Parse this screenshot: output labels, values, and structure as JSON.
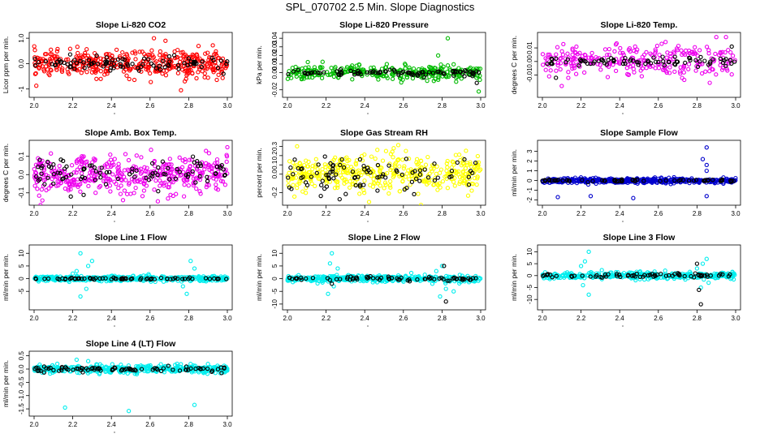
{
  "figure": {
    "title": "SPL_070702  2.5 Min. Slope Diagnostics"
  },
  "chart_data": [
    {
      "type": "scatter",
      "title": "Slope Li-820 CO2",
      "ylabel": "Licor ppm per min.",
      "xlim": [
        2.0,
        3.0
      ],
      "ylim": [
        -1.2,
        1.1
      ],
      "x_ticks": [
        "2.0",
        "2.2",
        "2.4",
        "2.6",
        "2.8",
        "3.0"
      ],
      "y_ticks": [
        "-1",
        "0.0",
        "1.0"
      ],
      "y_tick_values": [
        -1,
        0,
        1
      ],
      "series": [
        {
          "color": "#ff0000",
          "spread": 0.25,
          "count": 420,
          "outliers": [
            [
              2.76,
              -1.05
            ],
            [
              2.62,
              1.0
            ],
            [
              2.68,
              0.9
            ],
            [
              2.78,
              -0.7
            ]
          ]
        },
        {
          "color": "#000000",
          "spread": 0.15,
          "count": 90,
          "outliers": [
            [
              2.98,
              -0.4
            ]
          ]
        }
      ]
    },
    {
      "type": "scatter",
      "title": "Slope Li-820 Pressure",
      "ylabel": "kPa per min.",
      "xlim": [
        2.0,
        3.0
      ],
      "ylim": [
        -0.025,
        0.043
      ],
      "x_ticks": [
        "2.0",
        "2.2",
        "2.4",
        "2.6",
        "2.8",
        "3.0"
      ],
      "y_ticks": [
        "-0.02",
        "0.00",
        "0.01",
        "0.02",
        "0.03",
        "0.04"
      ],
      "y_tick_values": [
        -0.02,
        0.0,
        0.01,
        0.02,
        0.03,
        0.04
      ],
      "series": [
        {
          "color": "#00bb00",
          "spread": 0.004,
          "count": 320,
          "outliers": [
            [
              2.83,
              0.04
            ],
            [
              2.78,
              0.02
            ],
            [
              2.99,
              -0.022
            ]
          ]
        },
        {
          "color": "#000000",
          "spread": 0.002,
          "count": 90,
          "outliers": [
            [
              2.98,
              -0.012
            ]
          ]
        }
      ]
    },
    {
      "type": "scatter",
      "title": "Slope Li-820 Temp.",
      "ylabel": "degrees C per min.",
      "xlim": [
        2.0,
        3.0
      ],
      "ylim": [
        -0.024,
        0.019
      ],
      "x_ticks": [
        "2.0",
        "2.2",
        "2.4",
        "2.6",
        "2.8",
        "3.0"
      ],
      "y_ticks": [
        "-0.01",
        "0.00",
        "0.01"
      ],
      "y_tick_values": [
        -0.01,
        0.0,
        0.01
      ],
      "series": [
        {
          "color": "#ee00ee",
          "spread": 0.006,
          "count": 260,
          "outliers": [
            [
              2.9,
              0.018
            ],
            [
              2.95,
              0.018
            ],
            [
              2.1,
              -0.018
            ]
          ]
        },
        {
          "color": "#000000",
          "spread": 0.0015,
          "count": 80,
          "outliers": [
            [
              2.07,
              -0.012
            ],
            [
              2.98,
              0.011
            ]
          ]
        }
      ]
    },
    {
      "type": "scatter",
      "title": "Slope Amb. Box Temp.",
      "ylabel": "degrees C per min.",
      "xlim": [
        2.0,
        3.0
      ],
      "ylim": [
        -0.15,
        0.17
      ],
      "x_ticks": [
        "2.0",
        "2.2",
        "2.4",
        "2.6",
        "2.8",
        "3.0"
      ],
      "y_ticks": [
        "-0.1",
        "0.0",
        "0.1"
      ],
      "y_tick_values": [
        -0.1,
        0.0,
        0.1
      ],
      "series": [
        {
          "color": "#ee00ee",
          "spread": 0.05,
          "count": 420,
          "outliers": [
            [
              2.46,
              -0.14
            ],
            [
              3.0,
              0.15
            ]
          ]
        },
        {
          "color": "#000000",
          "spread": 0.045,
          "count": 90,
          "outliers": [
            [
              2.19,
              -0.12
            ],
            [
              2.07,
              0.07
            ]
          ]
        }
      ]
    },
    {
      "type": "scatter",
      "title": "Slope Gas Stream RH",
      "ylabel": "percent per min.",
      "xlim": [
        2.0,
        3.0
      ],
      "ylim": [
        -0.3,
        0.33
      ],
      "x_ticks": [
        "2.0",
        "2.2",
        "2.4",
        "2.6",
        "2.8",
        "3.0"
      ],
      "y_ticks": [
        "-0.2",
        "0.0",
        "0.1",
        "0.2",
        "0.3"
      ],
      "y_tick_values": [
        -0.2,
        0.0,
        0.1,
        0.2,
        0.3
      ],
      "series": [
        {
          "color": "#ffff00",
          "spread": 0.1,
          "count": 420,
          "outliers": [
            [
              2.05,
              0.3
            ],
            [
              2.55,
              0.28
            ]
          ]
        },
        {
          "color": "#000000",
          "spread": 0.09,
          "count": 90,
          "outliers": [
            [
              2.27,
              -0.27
            ]
          ]
        }
      ]
    },
    {
      "type": "scatter",
      "title": "Slope Sample Flow",
      "ylabel": "ml/min per min.",
      "xlim": [
        2.0,
        3.0
      ],
      "ylim": [
        -2.2,
        3.8
      ],
      "x_ticks": [
        "2.0",
        "2.2",
        "2.4",
        "2.6",
        "2.8",
        "3.0"
      ],
      "y_ticks": [
        "-2",
        "-1",
        "0",
        "1",
        "2",
        "3"
      ],
      "y_tick_values": [
        -2,
        -1,
        0,
        1,
        2,
        3
      ],
      "series": [
        {
          "color": "#0000cc",
          "spread": 0.12,
          "count": 460,
          "outliers": [
            [
              2.85,
              3.4
            ],
            [
              2.83,
              2.2
            ],
            [
              2.85,
              1.6
            ],
            [
              2.85,
              1.0
            ],
            [
              2.85,
              -1.6
            ],
            [
              2.25,
              -1.6
            ],
            [
              2.08,
              -1.7
            ],
            [
              2.47,
              -1.8
            ]
          ]
        },
        {
          "color": "#000000",
          "spread": 0.06,
          "count": 60,
          "outliers": []
        }
      ]
    },
    {
      "type": "scatter",
      "title": "Slope Line 1 Flow",
      "ylabel": "ml/min per min.",
      "xlim": [
        2.0,
        3.0
      ],
      "ylim": [
        -11,
        12
      ],
      "x_ticks": [
        "2.0",
        "2.2",
        "2.4",
        "2.6",
        "2.8",
        "3.0"
      ],
      "y_ticks": [
        "-5",
        "0",
        "5",
        "10"
      ],
      "y_tick_values": [
        -5,
        0,
        5,
        10
      ],
      "series": [
        {
          "color": "#00eeee",
          "spread": 0.5,
          "count": 420,
          "outliers": [
            [
              2.24,
              10
            ],
            [
              2.22,
              3
            ],
            [
              2.3,
              7
            ],
            [
              2.28,
              5
            ],
            [
              2.24,
              -7
            ],
            [
              2.27,
              -4
            ],
            [
              2.81,
              7
            ],
            [
              2.79,
              -6
            ],
            [
              2.77,
              -3
            ],
            [
              2.83,
              4
            ],
            [
              2.2,
              2
            ]
          ]
        },
        {
          "color": "#000000",
          "spread": 0.2,
          "count": 70,
          "outliers": []
        }
      ]
    },
    {
      "type": "scatter",
      "title": "Slope Line 2 Flow",
      "ylabel": "ml/min per min.",
      "xlim": [
        2.0,
        3.0
      ],
      "ylim": [
        -11,
        12
      ],
      "x_ticks": [
        "2.0",
        "2.2",
        "2.4",
        "2.6",
        "2.8",
        "3.0"
      ],
      "y_ticks": [
        "-10",
        "-5",
        "0",
        "5",
        "10"
      ],
      "y_tick_values": [
        -10,
        -5,
        0,
        5,
        10
      ],
      "series": [
        {
          "color": "#00eeee",
          "spread": 0.6,
          "count": 420,
          "outliers": [
            [
              2.23,
              10
            ],
            [
              2.22,
              6
            ],
            [
              2.26,
              4
            ],
            [
              2.24,
              -3
            ],
            [
              2.21,
              -6
            ],
            [
              2.79,
              -7
            ],
            [
              2.82,
              -4
            ],
            [
              2.8,
              5
            ],
            [
              2.77,
              3
            ],
            [
              2.75,
              -2
            ],
            [
              2.86,
              -5
            ]
          ]
        },
        {
          "color": "#000000",
          "spread": 0.4,
          "count": 70,
          "outliers": [
            [
              2.81,
              5
            ],
            [
              2.82,
              -9
            ],
            [
              2.23,
              -2
            ]
          ]
        }
      ]
    },
    {
      "type": "scatter",
      "title": "Slope Line 3 Flow",
      "ylabel": "ml/min per min.",
      "xlim": [
        2.0,
        3.0
      ],
      "ylim": [
        -13,
        11.5
      ],
      "x_ticks": [
        "2.0",
        "2.2",
        "2.4",
        "2.6",
        "2.8",
        "3.0"
      ],
      "y_ticks": [
        "-10",
        "-5",
        "0",
        "5",
        "10"
      ],
      "y_tick_values": [
        -10,
        -5,
        0,
        5,
        10
      ],
      "series": [
        {
          "color": "#00eeee",
          "spread": 0.7,
          "count": 420,
          "outliers": [
            [
              2.24,
              10
            ],
            [
              2.22,
              6
            ],
            [
              2.21,
              -4
            ],
            [
              2.24,
              -8
            ],
            [
              2.2,
              4
            ],
            [
              2.85,
              7
            ],
            [
              2.82,
              -5
            ],
            [
              2.83,
              5
            ],
            [
              2.86,
              -3
            ],
            [
              2.8,
              3
            ]
          ]
        },
        {
          "color": "#000000",
          "spread": 0.4,
          "count": 70,
          "outliers": [
            [
              2.82,
              -12
            ],
            [
              2.8,
              5
            ],
            [
              2.81,
              -6
            ]
          ]
        }
      ]
    },
    {
      "type": "scatter",
      "title": "Slope Line 4 (LT) Flow",
      "ylabel": "ml/min per min.",
      "xlim": [
        2.0,
        3.0
      ],
      "ylim": [
        -1.65,
        0.55
      ],
      "x_ticks": [
        "2.0",
        "2.2",
        "2.4",
        "2.6",
        "2.8",
        "3.0"
      ],
      "y_ticks": [
        "-1.5",
        "-1.0",
        "-0.5",
        "0.0",
        "0.5"
      ],
      "y_tick_values": [
        -1.5,
        -1.0,
        -0.5,
        0.0,
        0.5
      ],
      "series": [
        {
          "color": "#00eeee",
          "spread": 0.07,
          "count": 420,
          "outliers": [
            [
              2.16,
              -1.45
            ],
            [
              2.49,
              -1.58
            ],
            [
              2.83,
              -1.35
            ],
            [
              2.22,
              0.35
            ],
            [
              2.28,
              0.3
            ],
            [
              2.12,
              0.2
            ],
            [
              2.74,
              0.2
            ]
          ]
        },
        {
          "color": "#000000",
          "spread": 0.05,
          "count": 80,
          "outliers": [
            [
              2.97,
              -0.15
            ]
          ]
        }
      ]
    }
  ]
}
